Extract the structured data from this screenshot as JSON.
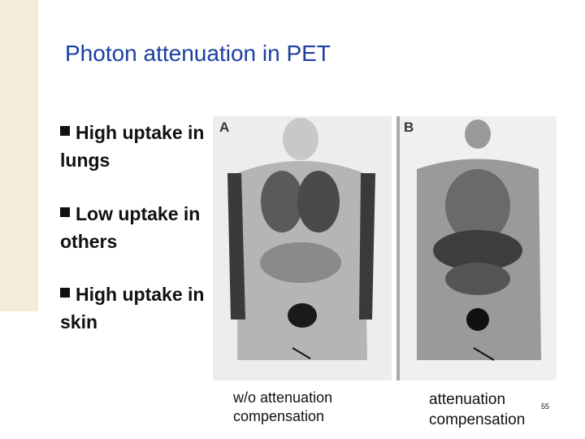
{
  "title": "Photon attenuation in PET",
  "bullets": [
    "High uptake in lungs",
    "Low uptake in others",
    "High uptake in skin"
  ],
  "panels": [
    {
      "label": "A",
      "caption": "w/o attenuation compensation"
    },
    {
      "label": "B",
      "caption": "attenuation compensation"
    }
  ],
  "page_number": "55"
}
